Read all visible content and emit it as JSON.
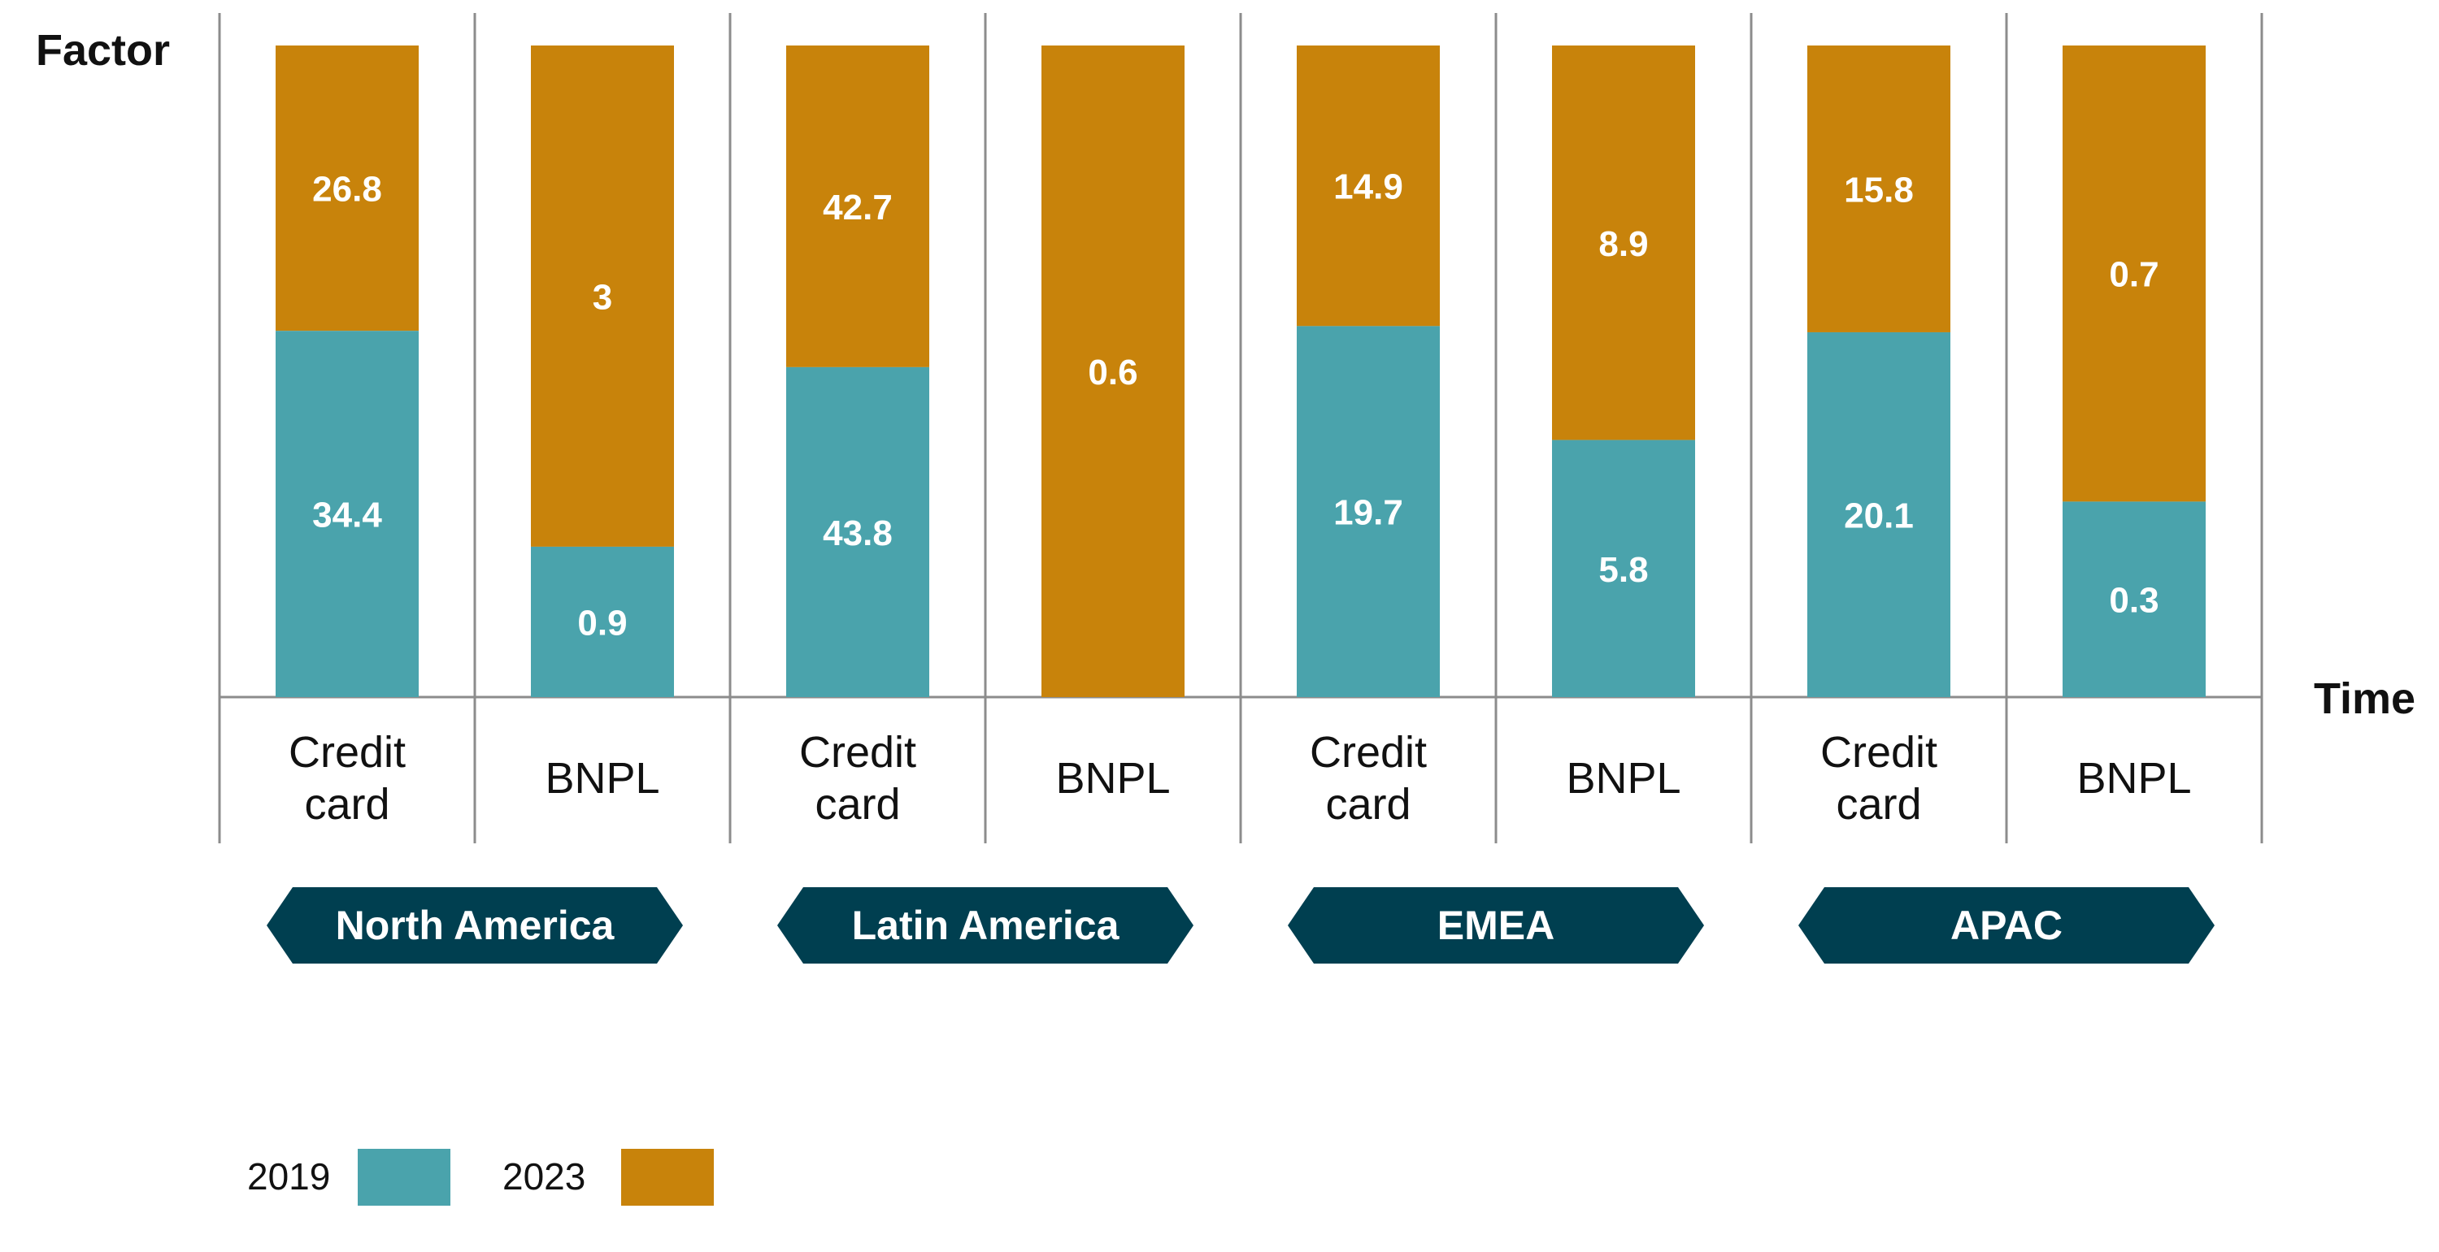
{
  "chart_data": {
    "type": "bar",
    "stacked": true,
    "normalized": true,
    "ylabel": "Factor",
    "xlabel": "Time",
    "groups": [
      {
        "region": "North America",
        "bars": [
          {
            "category": [
              "Credit",
              "card"
            ],
            "values": {
              "2019": 34.4,
              "2023": 26.8
            }
          },
          {
            "category": [
              "BNPL"
            ],
            "values": {
              "2019": 0.9,
              "2023": 3
            }
          }
        ]
      },
      {
        "region": "Latin America",
        "bars": [
          {
            "category": [
              "Credit",
              "card"
            ],
            "values": {
              "2019": 43.8,
              "2023": 42.7
            }
          },
          {
            "category": [
              "BNPL"
            ],
            "values": {
              "2019": null,
              "2023": 0.6
            }
          }
        ]
      },
      {
        "region": "EMEA",
        "bars": [
          {
            "category": [
              "Credit",
              "card"
            ],
            "values": {
              "2019": 19.7,
              "2023": 14.9
            }
          },
          {
            "category": [
              "BNPL"
            ],
            "values": {
              "2019": 5.8,
              "2023": 8.9
            }
          }
        ]
      },
      {
        "region": "APAC",
        "bars": [
          {
            "category": [
              "Credit",
              "card"
            ],
            "values": {
              "2019": 20.1,
              "2023": 15.8
            }
          },
          {
            "category": [
              "BNPL"
            ],
            "values": {
              "2019": 0.3,
              "2023": 0.7
            }
          }
        ]
      }
    ],
    "series": [
      {
        "name": "2019",
        "color": "#4aa3ac"
      },
      {
        "name": "2023",
        "color": "#c8830b"
      }
    ]
  },
  "colors": {
    "region_badge": "#003f50",
    "grid": "#8c8c8c"
  }
}
